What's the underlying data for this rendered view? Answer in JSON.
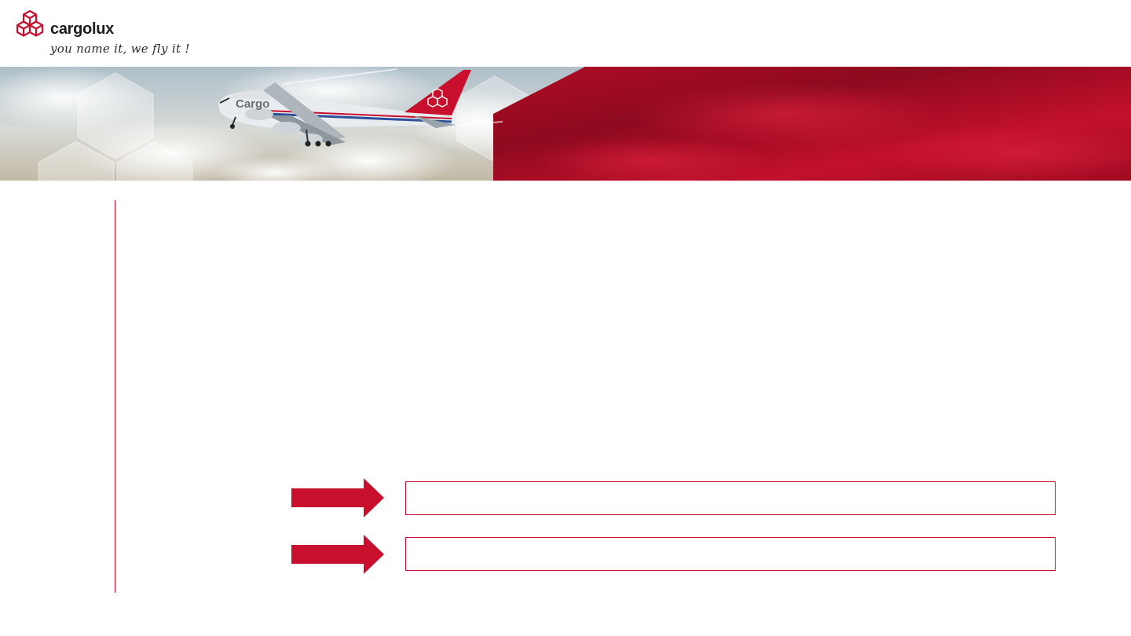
{
  "brand": {
    "name": "cargolux",
    "tagline": "you name it, we fly it !",
    "logo_icon": "hexagon-cubes-icon",
    "accent_color": "#c8102e"
  },
  "banner": {
    "image": "cargolux-747-in-flight-photo",
    "aircraft_livery_text": "Cargo"
  },
  "slide": {
    "arrow_icon": "right-arrow-icon",
    "items": [
      {
        "text": ""
      },
      {
        "text": ""
      }
    ]
  }
}
